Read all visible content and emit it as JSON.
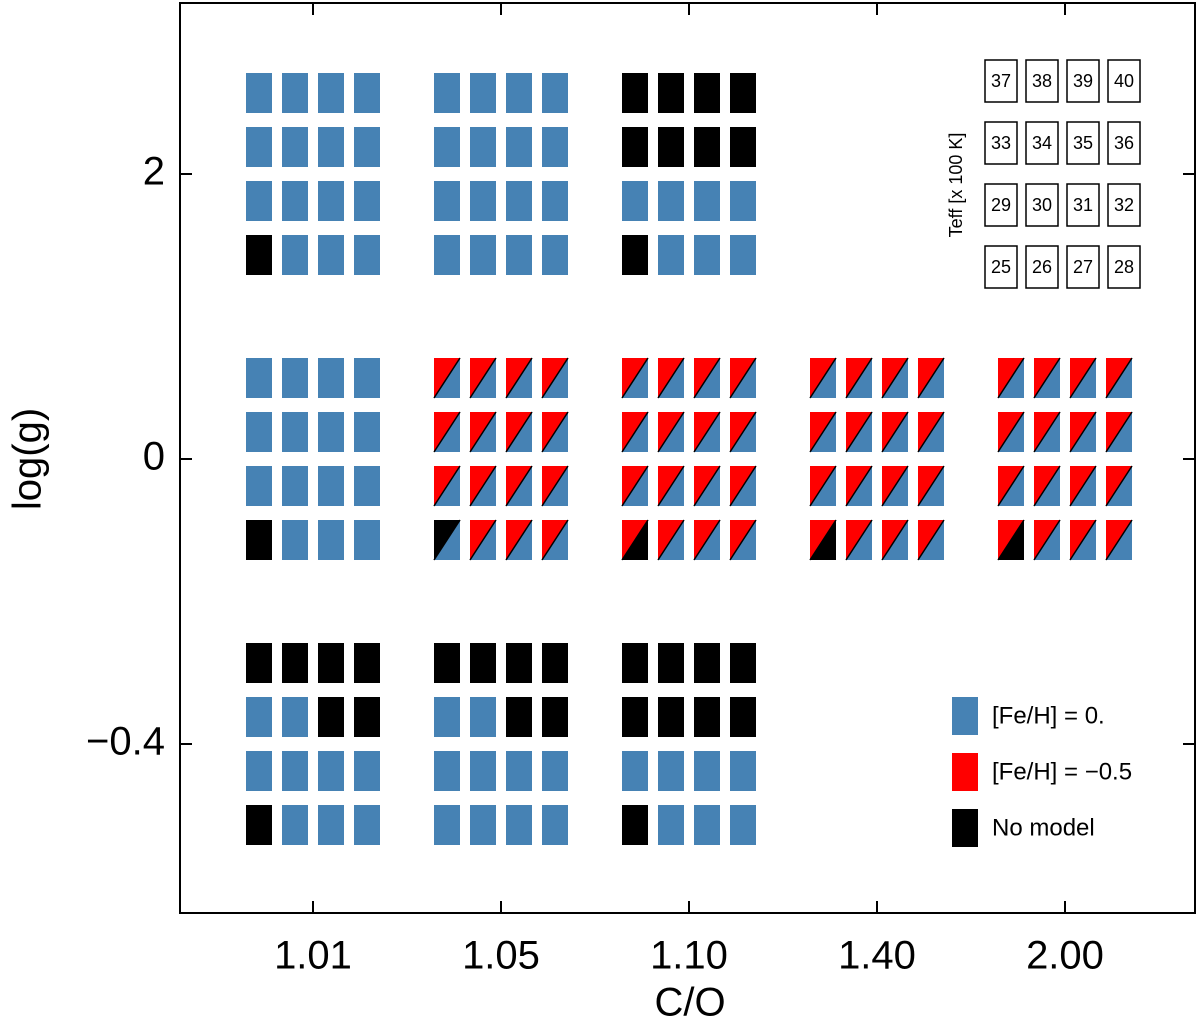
{
  "chart_data": {
    "type": "grid",
    "xlabel": "C/O",
    "ylabel": "log(g)",
    "categories": [
      "1.01",
      "1.05",
      "1.10",
      "1.40",
      "2.00"
    ],
    "y_categories": [
      "2",
      "0",
      "−0.4"
    ],
    "legend": [
      {
        "label": "[Fe/H] = 0.",
        "color": "#4682b4"
      },
      {
        "label": "[Fe/H] = −0.5",
        "color": "#ff0000"
      },
      {
        "label": "No model",
        "color": "#000000"
      }
    ],
    "grid": [
      [
        [
          "BBBB",
          "BBBB",
          "BBBB",
          "KBBB"
        ],
        [
          "BBBB",
          "BBBB",
          "BBBB",
          "BBBB"
        ],
        [
          "KKKK",
          "KKKK",
          "BBBB",
          "KBBB"
        ],
        null,
        null
      ],
      [
        [
          "BBBB",
          "BBBB",
          "BBBB",
          "KBBB"
        ],
        [
          "RRRR",
          "RRRR",
          "RRRR",
          "XRRR"
        ],
        [
          "RRRR",
          "RRRR",
          "RRRR",
          "YRRR"
        ],
        [
          "RRRR",
          "RRRR",
          "RRRR",
          "YRRR"
        ],
        [
          "RRRR",
          "RRRR",
          "RRRR",
          "YRRR"
        ]
      ],
      [
        [
          "KKKK",
          "BBKK",
          "BBBB",
          "KBBB"
        ],
        [
          "KKKK",
          "BBKK",
          "BBBB",
          "BBBB"
        ],
        [
          "KKKK",
          "KKKK",
          "BBBB",
          "KBBB"
        ],
        null,
        null
      ]
    ],
    "teff_key": {
      "label": "Teff [x 100 K]",
      "rows": [
        [
          37,
          38,
          39,
          40
        ],
        [
          33,
          34,
          35,
          36
        ],
        [
          29,
          30,
          31,
          32
        ],
        [
          25,
          26,
          27,
          28
        ]
      ]
    }
  }
}
